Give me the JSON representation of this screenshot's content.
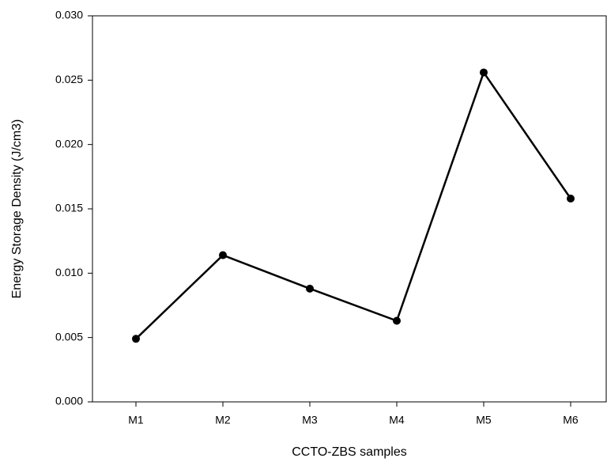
{
  "chart_data": {
    "type": "line",
    "x_label": "CCTO-ZBS samples",
    "y_label": "Energy Storage Density (J/cm3)",
    "categories": [
      "M1",
      "M2",
      "M3",
      "M4",
      "M5",
      "M6"
    ],
    "series": [
      {
        "color": "#000000",
        "values": [
          0.0049,
          0.0114,
          0.0088,
          0.0063,
          0.0256,
          0.0158
        ]
      }
    ],
    "ylim": [
      0,
      0.03
    ],
    "yticks": [
      {
        "value": 0,
        "label": "0.000"
      },
      {
        "value": 0.005,
        "label": "0.005"
      },
      {
        "value": 0.01,
        "label": "0.010"
      },
      {
        "value": 0.015,
        "label": "0.015"
      },
      {
        "value": 0.02,
        "label": "0.020"
      },
      {
        "value": 0.025,
        "label": "0.025"
      },
      {
        "value": 0.03,
        "label": "0.030"
      }
    ],
    "grid": false
  }
}
